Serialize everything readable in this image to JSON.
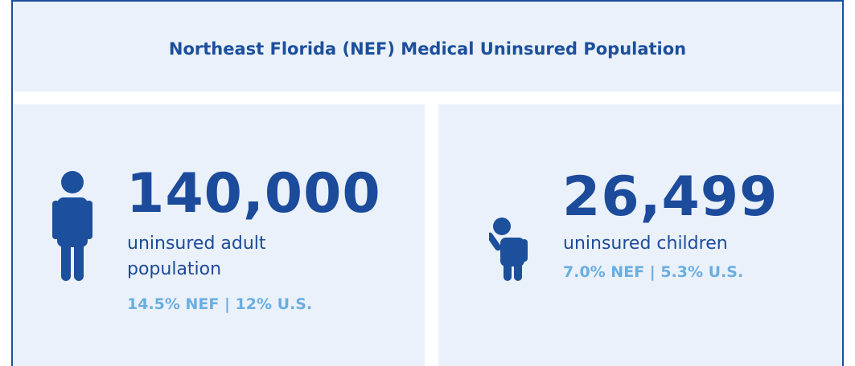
{
  "header": {
    "title": "Northeast Florida (NEF) Medical Uninsured Population"
  },
  "panels": [
    {
      "number": "140,000",
      "description": "uninsured adult population",
      "stats": "14.5% NEF | 12% U.S."
    },
    {
      "number": "26,499",
      "description": "uninsured children",
      "stats": "7.0% NEF | 5.3% U.S."
    }
  ]
}
